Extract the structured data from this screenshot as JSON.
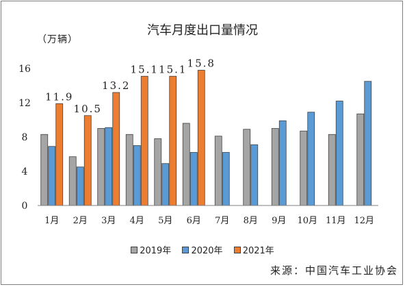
{
  "title": "汽车月度出口量情况",
  "unit": "（万辆）",
  "source": "来源：中国汽车工业协会",
  "colors": {
    "2019年": "#a5a5a5",
    "2020年": "#5b9bd5",
    "2021年": "#ed7d31",
    "bar_border": "#404040",
    "axis": "#7f7f7f"
  },
  "chart_data": {
    "type": "bar",
    "categories": [
      "1月",
      "2月",
      "3月",
      "4月",
      "5月",
      "6月",
      "7月",
      "8月",
      "9月",
      "10月",
      "11月",
      "12月"
    ],
    "series": [
      {
        "name": "2019年",
        "values": [
          8.3,
          5.7,
          9.0,
          8.3,
          7.8,
          9.6,
          8.1,
          8.9,
          9.0,
          8.7,
          8.3,
          10.7
        ]
      },
      {
        "name": "2020年",
        "values": [
          6.9,
          4.5,
          9.1,
          7.0,
          4.9,
          6.2,
          6.2,
          7.1,
          9.9,
          10.9,
          12.2,
          14.5
        ]
      },
      {
        "name": "2021年",
        "values": [
          11.9,
          10.5,
          13.2,
          15.1,
          15.1,
          15.8,
          null,
          null,
          null,
          null,
          null,
          null
        ]
      }
    ],
    "data_labels": {
      "2021年": [
        "11.9",
        "10.5",
        "13.2",
        "15.1",
        "15.1",
        "15.8"
      ]
    },
    "ylim": [
      0,
      16
    ],
    "yticks": [
      0,
      4,
      8,
      12,
      16
    ],
    "xlabel": "",
    "ylabel": "",
    "grid": false,
    "legend_position": "bottom"
  }
}
